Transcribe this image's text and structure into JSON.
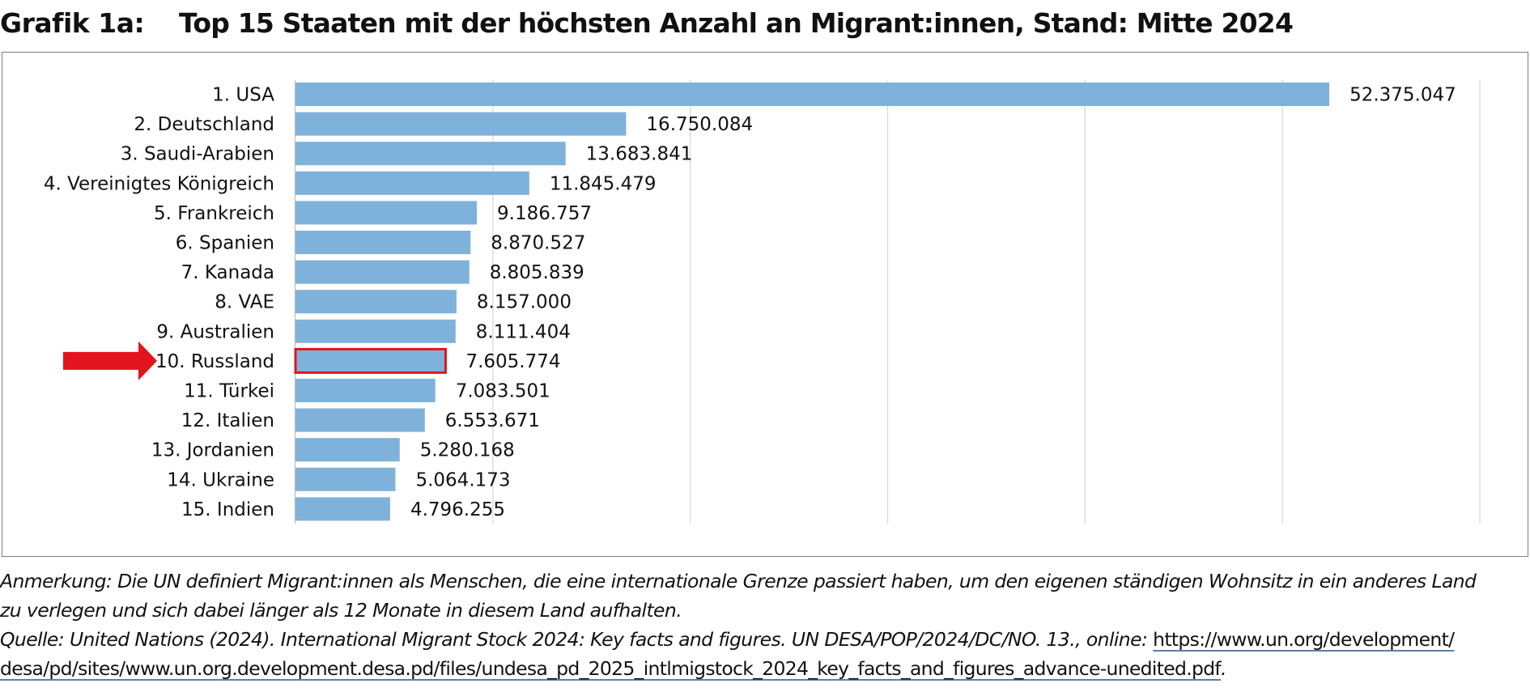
{
  "header": {
    "label": "Grafik 1a:",
    "title": "Top 15 Staaten mit der höchsten Anzahl an Migrant:innen, Stand: Mitte 2024"
  },
  "chart_data": {
    "type": "bar",
    "orientation": "horizontal",
    "title": "Top 15 Staaten mit der höchsten Anzahl an Migrant:innen, Stand: Mitte 2024",
    "xlabel": "",
    "ylabel": "",
    "xlim": [
      0,
      60000000
    ],
    "grid": true,
    "categories": [
      "1. USA",
      "2. Deutschland",
      "3. Saudi-Arabien",
      "4. Vereinigtes Königreich",
      "5. Frankreich",
      "6. Spanien",
      "7. Kanada",
      "8. VAE",
      "9. Australien",
      "10. Russland",
      "11. Türkei",
      "12. Italien",
      "13. Jordanien",
      "14. Ukraine",
      "15. Indien"
    ],
    "values": [
      52375047,
      16750084,
      13683841,
      11845479,
      9186757,
      8870527,
      8805839,
      8157000,
      8111404,
      7605774,
      7083501,
      6553671,
      5280168,
      5064173,
      4796255
    ],
    "value_labels": [
      "52.375.047",
      "16.750.084",
      "13.683.841",
      "11.845.479",
      "9.186.757",
      "8.870.527",
      "8.805.839",
      "8.157.000",
      "8.111.404",
      "7.605.774",
      "7.083.501",
      "6.553.671",
      "5.280.168",
      "5.064.173",
      "4.796.255"
    ],
    "highlighted_category": "10. Russland",
    "colors": {
      "bar": "#7fb2da",
      "highlight_border": "#e3141f",
      "arrow": "#e3141f",
      "grid": "#d9d9d9"
    }
  },
  "notes": {
    "line1": "Anmerkung: Die UN definiert Migrant:innen als Menschen, die eine internationale Grenze passiert haben, um den eigenen ständigen Wohnsitz in ein anderes Land",
    "line2": "zu verlegen und sich dabei länger als 12 Monate in diesem Land aufhalten.",
    "line3_prefix": "Quelle: United Nations (2024). International Migrant Stock 2024: Key facts and figures. UN DESA/POP/2024/DC/NO. 13., online: ",
    "link_part1": "https://www.un.org/development/",
    "link_part2": "desa/pd/sites/www.un.org.development.desa.pd/files/undesa_pd_2025_intlmigstock_2024_key_facts_and_figures_advance-unedited.pdf",
    "line4_suffix": "."
  }
}
